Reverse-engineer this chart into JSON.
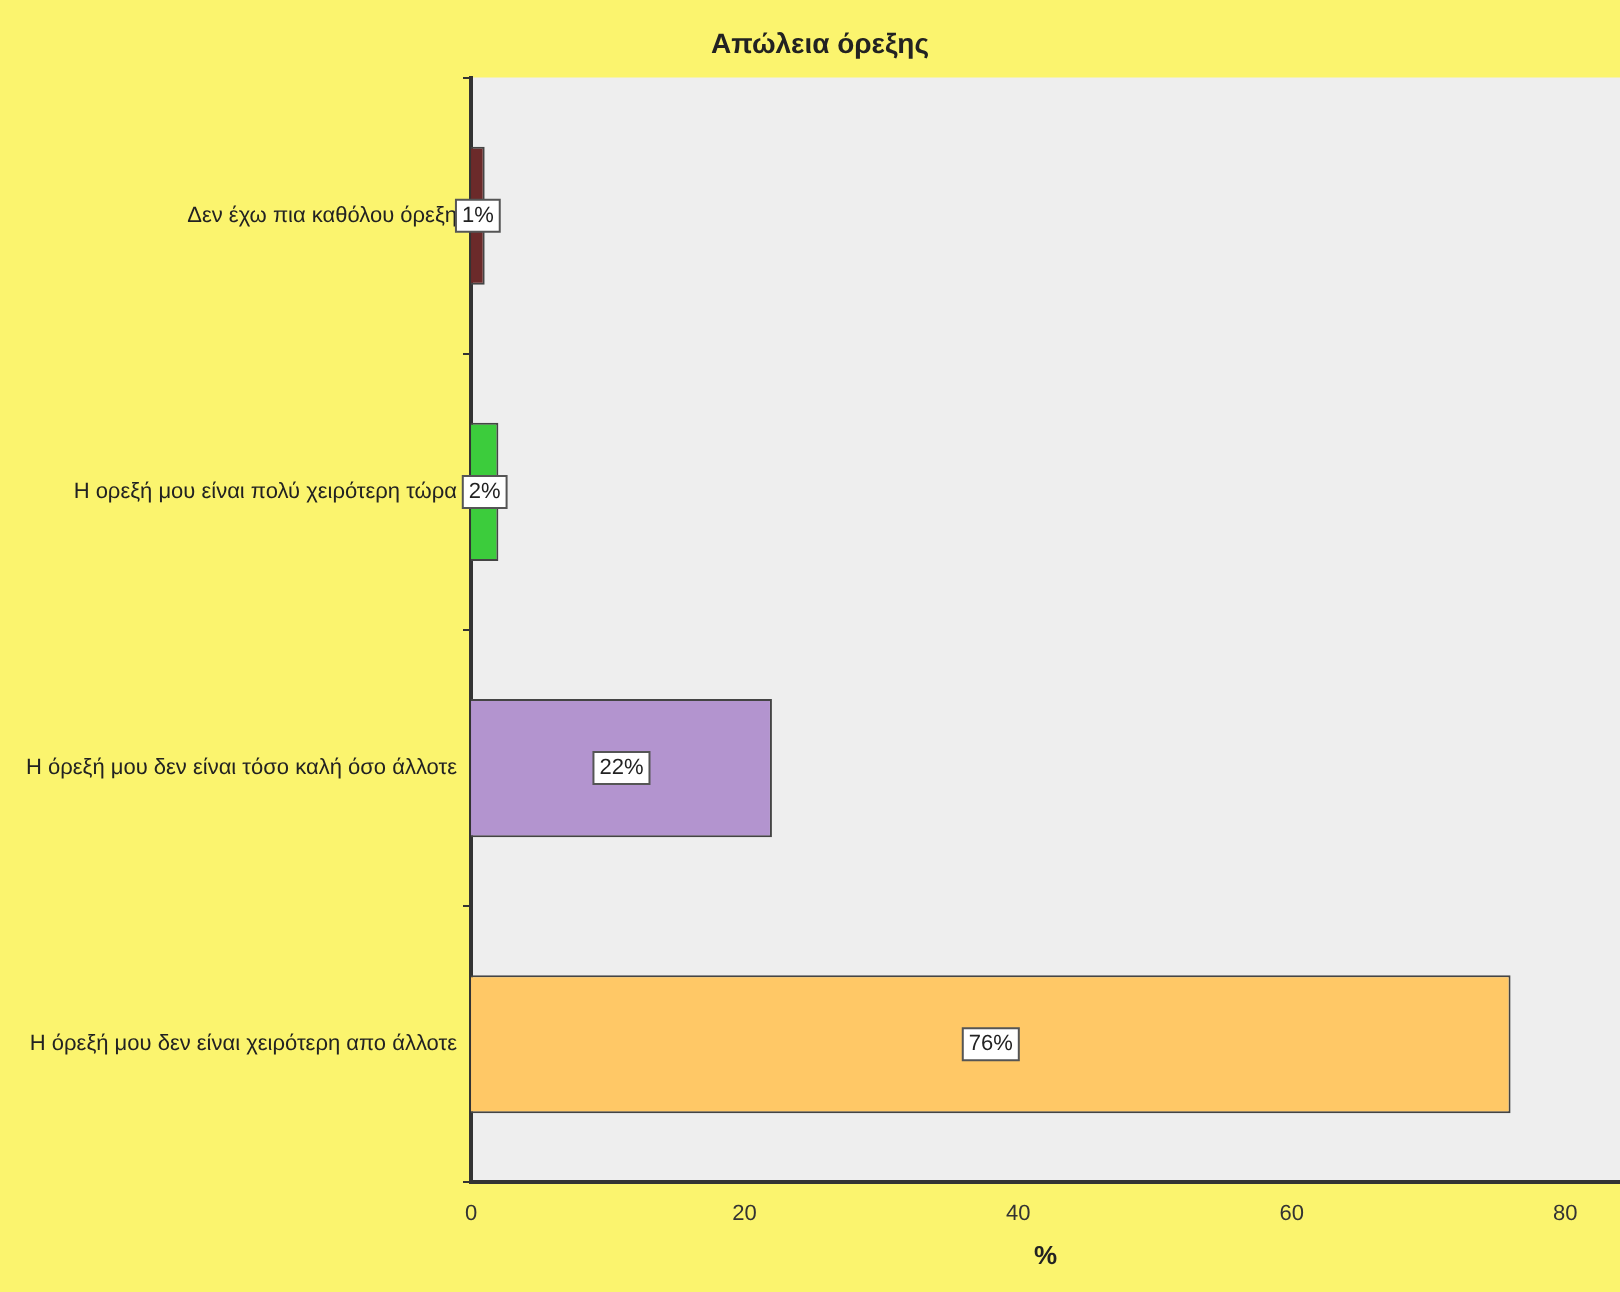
{
  "chart_data": {
    "type": "bar",
    "orientation": "horizontal",
    "title": "Απώλεια όρεξης",
    "xlabel": "%",
    "categories": [
      "Δεν έχω πια καθόλου όρεξη",
      "Η ορεξή μου είναι πολύ χειρότερη τώρα",
      "Η όρεξή μου δεν είναι τόσο καλή όσο άλλοτε",
      "Η όρεξή μου δεν είναι χειρότερη απο άλλοτε"
    ],
    "values": [
      1,
      2,
      22,
      76
    ],
    "colors": [
      "#6b2a2a",
      "#3ccc3c",
      "#b394cf",
      "#ffc866"
    ],
    "value_labels": [
      "1%",
      "2%",
      "22%",
      "76%"
    ],
    "xlim": [
      0,
      84
    ],
    "xticks": [
      0,
      20,
      40,
      60,
      80
    ],
    "grid": false,
    "legend": false
  }
}
